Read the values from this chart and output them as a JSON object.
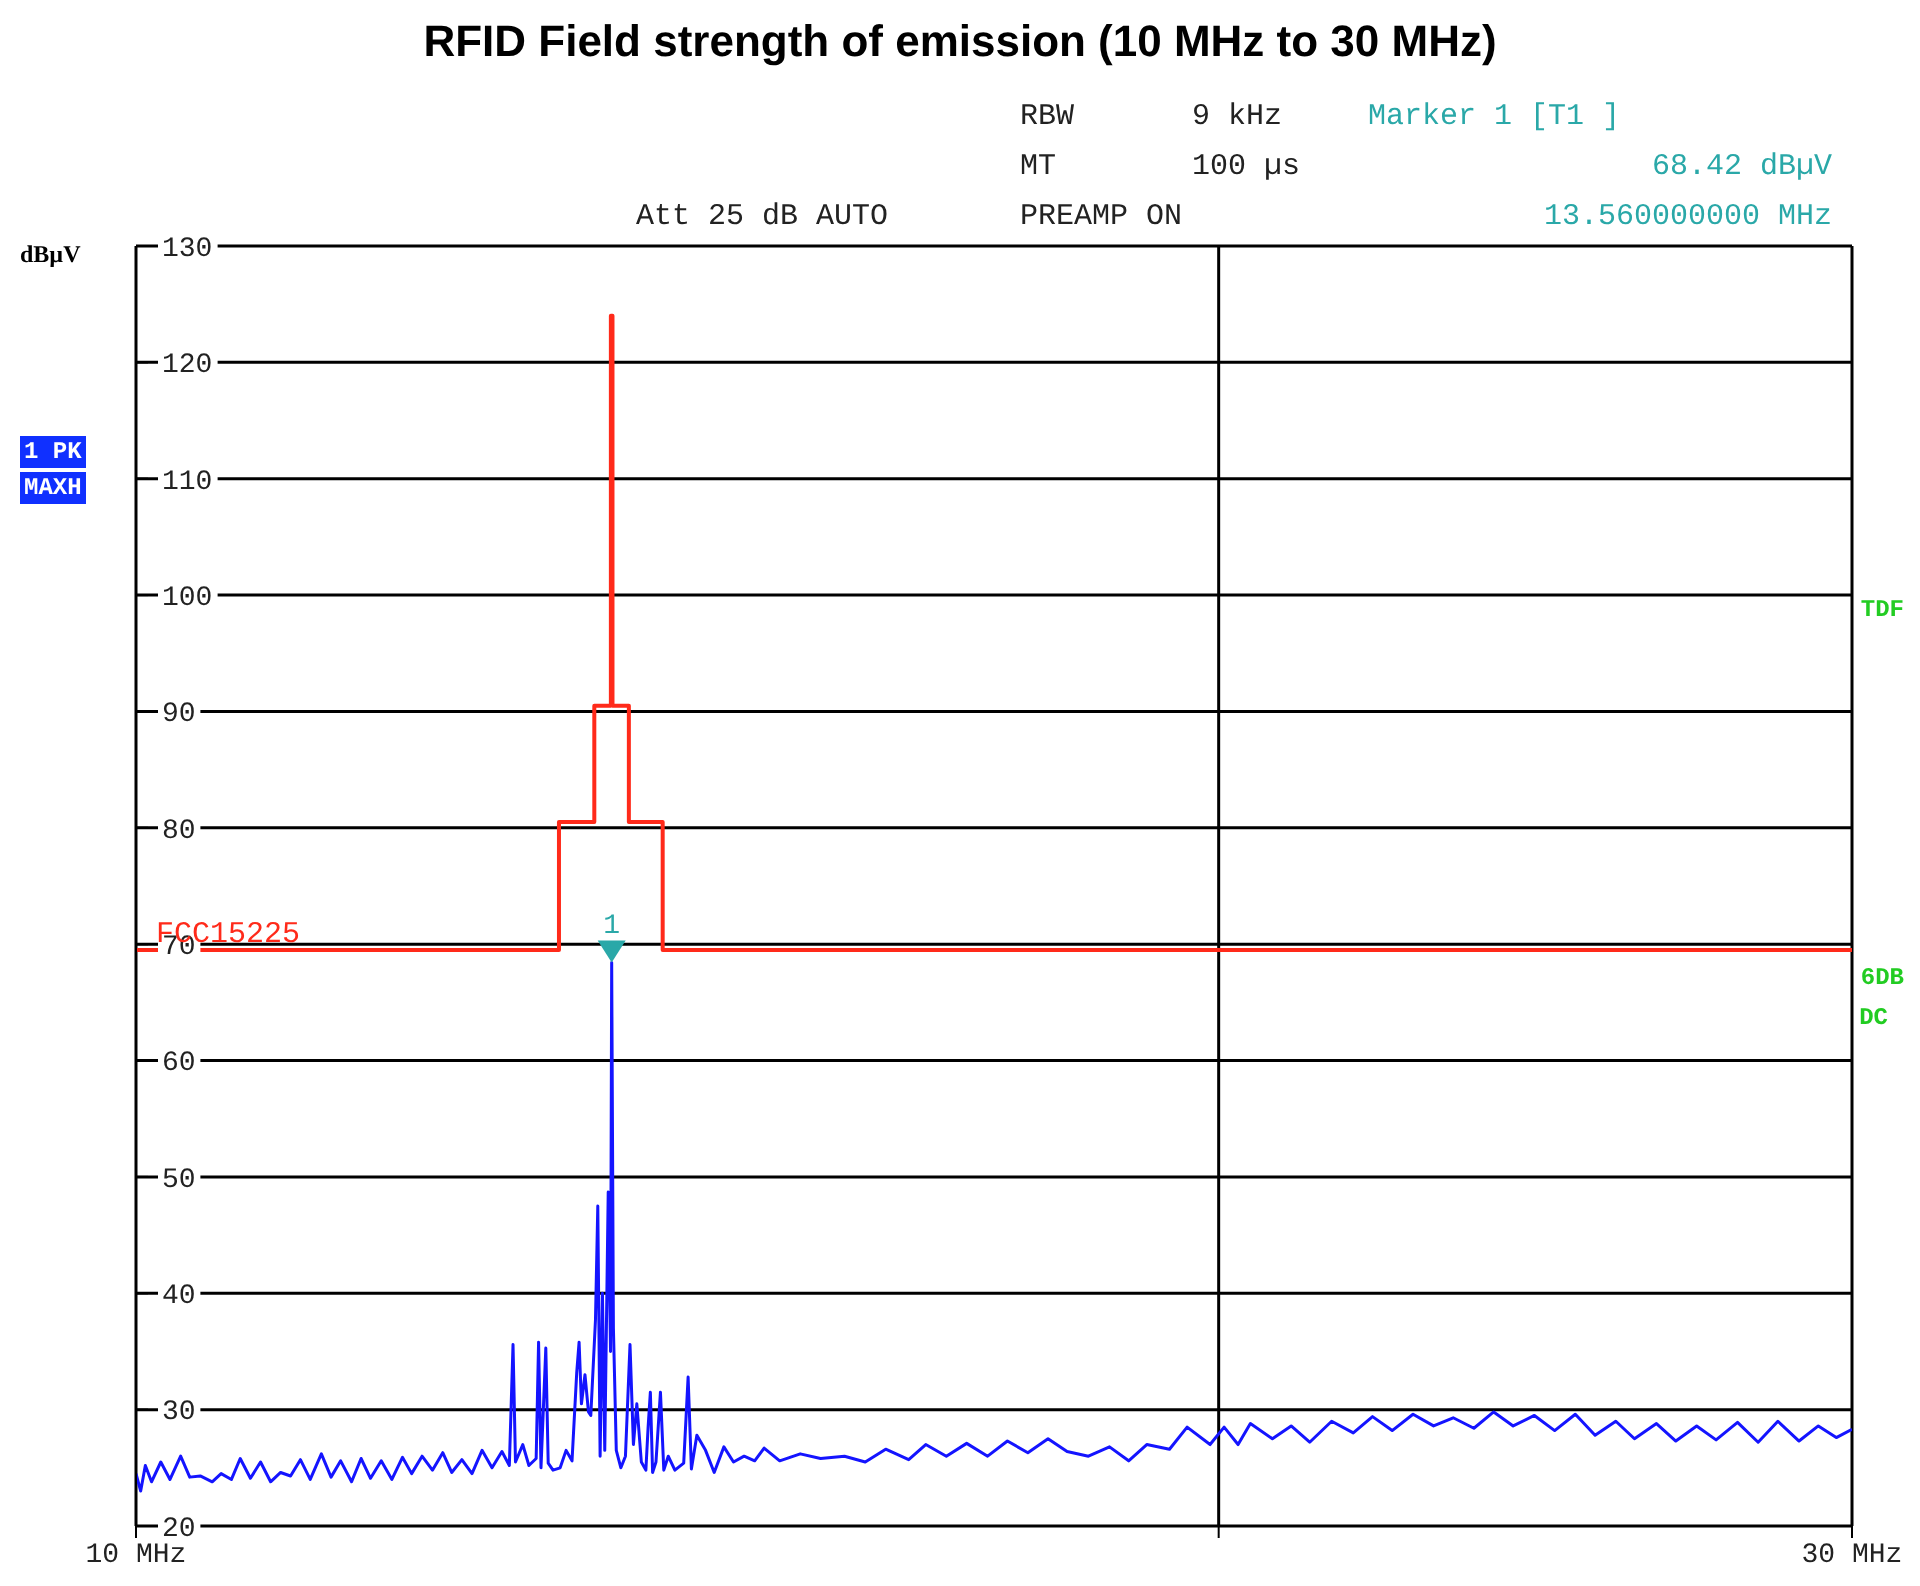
{
  "chart_data": {
    "type": "line",
    "title": "RFID Field strength of emission (10 MHz to 30 MHz)",
    "ylabel": "dBµV",
    "log": "x",
    "grid": true,
    "marker": "none",
    "line_style": "solid",
    "xlim": [
      10,
      30
    ],
    "xticks": [
      {
        "value": 10,
        "label": "10 MHz"
      },
      {
        "value": 20,
        "label": null
      },
      {
        "value": 30,
        "label": "30 MHz"
      }
    ],
    "ylim": [
      20,
      130
    ],
    "yticks": [
      20,
      30,
      40,
      50,
      60,
      70,
      80,
      90,
      100,
      110,
      120,
      130
    ],
    "series": [
      {
        "color": "#1414ff",
        "x": [
          10.0,
          10.03,
          10.06,
          10.1,
          10.16,
          10.22,
          10.29,
          10.35,
          10.42,
          10.5,
          10.56,
          10.63,
          10.69,
          10.76,
          10.83,
          10.9,
          10.97,
          11.04,
          11.11,
          11.18,
          11.26,
          11.33,
          11.4,
          11.48,
          11.55,
          11.62,
          11.7,
          11.78,
          11.86,
          11.93,
          12.01,
          12.09,
          12.17,
          12.24,
          12.32,
          12.4,
          12.48,
          12.56,
          12.64,
          12.7,
          12.73,
          12.75,
          12.81,
          12.86,
          12.92,
          12.94,
          12.96,
          13.0,
          13.02,
          13.06,
          13.12,
          13.17,
          13.22,
          13.26,
          13.28,
          13.3,
          13.33,
          13.36,
          13.38,
          13.42,
          13.44,
          13.46,
          13.48,
          13.5,
          13.53,
          13.55,
          13.56,
          13.575,
          13.6,
          13.64,
          13.68,
          13.72,
          13.75,
          13.78,
          13.82,
          13.86,
          13.88,
          13.9,
          13.92,
          13.95,
          13.99,
          14.02,
          14.06,
          14.12,
          14.2,
          14.24,
          14.27,
          14.32,
          14.4,
          14.48,
          14.57,
          14.66,
          14.76,
          14.86,
          14.95,
          15.1,
          15.3,
          15.5,
          15.74,
          15.95,
          16.16,
          16.4,
          16.58,
          16.8,
          17.02,
          17.25,
          17.47,
          17.7,
          17.93,
          18.15,
          18.4,
          18.65,
          18.88,
          19.1,
          19.38,
          19.6,
          19.89,
          20.07,
          20.25,
          20.41,
          20.7,
          20.95,
          21.2,
          21.5,
          21.8,
          22.07,
          22.35,
          22.65,
          22.95,
          23.24,
          23.55,
          23.85,
          24.15,
          24.48,
          24.8,
          25.13,
          25.45,
          25.79,
          26.1,
          26.47,
          26.8,
          27.16,
          27.5,
          27.88,
          28.25,
          28.61,
          29.0,
          29.36,
          29.7,
          30.0
        ],
        "values": [
          24.5,
          23.0,
          25.2,
          23.8,
          25.5,
          24.0,
          26.0,
          24.2,
          24.3,
          23.8,
          24.5,
          24.0,
          25.8,
          24.1,
          25.5,
          23.8,
          24.6,
          24.3,
          25.7,
          24.0,
          26.2,
          24.2,
          25.6,
          23.8,
          25.8,
          24.1,
          25.6,
          24.0,
          25.9,
          24.5,
          26.0,
          24.8,
          26.3,
          24.6,
          25.7,
          24.5,
          26.5,
          25.0,
          26.4,
          25.2,
          35.6,
          25.5,
          27.0,
          25.2,
          25.8,
          35.8,
          25.0,
          35.3,
          25.4,
          24.8,
          25.0,
          26.5,
          25.6,
          33.2,
          35.8,
          30.5,
          33.0,
          29.8,
          29.5,
          37.7,
          47.5,
          26.0,
          40.0,
          26.5,
          48.7,
          35.0,
          68.42,
          37.0,
          26.5,
          25.0,
          26.0,
          35.6,
          27.0,
          30.5,
          25.5,
          24.8,
          28.5,
          31.5,
          24.6,
          25.5,
          31.5,
          24.8,
          26.0,
          24.8,
          25.4,
          32.8,
          24.9,
          27.8,
          26.5,
          24.6,
          26.8,
          25.5,
          26.0,
          25.6,
          26.7,
          25.6,
          26.2,
          25.8,
          26.0,
          25.5,
          26.6,
          25.7,
          27.0,
          26.0,
          27.1,
          26.0,
          27.3,
          26.3,
          27.5,
          26.4,
          26.0,
          26.8,
          25.6,
          27.0,
          26.6,
          28.5,
          27.0,
          28.5,
          27.0,
          28.8,
          27.5,
          28.6,
          27.2,
          29.0,
          28.0,
          29.4,
          28.2,
          29.6,
          28.6,
          29.3,
          28.4,
          29.8,
          28.6,
          29.5,
          28.2,
          29.6,
          27.8,
          29.0,
          27.5,
          28.8,
          27.3,
          28.6,
          27.4,
          28.9,
          27.2,
          29.0,
          27.3,
          28.6,
          27.6,
          28.3
        ]
      },
      {
        "type": "step",
        "name": "FCC15225",
        "color": "#ff2a1a",
        "x": [
          10,
          13.11,
          13.41,
          13.553,
          13.567,
          13.71,
          14.01,
          30
        ],
        "values": [
          69.5,
          80.5,
          90.5,
          124,
          90.5,
          80.5,
          69.5,
          69.5
        ]
      }
    ],
    "annotations": [
      "RBW",
      "9 kHz",
      "Marker 1 [T1 ]",
      "MT",
      "100 µs",
      "68.42 dBµV",
      "Att 25 dB AUTO",
      "PREAMP ON",
      "13.560000000 MHz",
      "1 PK",
      "MAXH",
      "TDF",
      "6DB",
      "DC",
      {
        "text": "1",
        "x": 13.56,
        "y": 68.42
      }
    ]
  }
}
